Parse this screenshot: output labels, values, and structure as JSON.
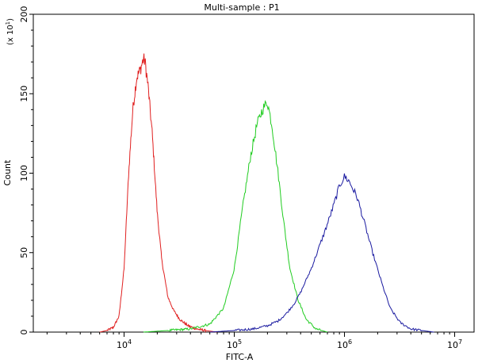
{
  "chart_data": {
    "type": "line",
    "title": "Multi-sample : P1",
    "xlabel": "FITC-A",
    "ylabel": "Count",
    "y_multiplier_label": "(x 10",
    "y_multiplier_exp": "1",
    "x_scale": "log",
    "xlim": [
      1500,
      15000000
    ],
    "ylim": [
      0,
      200
    ],
    "x_ticks": [
      {
        "value": 10000,
        "base": "10",
        "exp": "4"
      },
      {
        "value": 100000,
        "base": "10",
        "exp": "5"
      },
      {
        "value": 1000000,
        "base": "10",
        "exp": "6"
      },
      {
        "value": 10000000,
        "base": "10",
        "exp": "7"
      }
    ],
    "y_ticks": [
      {
        "value": 0,
        "label": "0"
      },
      {
        "value": 50,
        "label": "50"
      },
      {
        "value": 100,
        "label": "100"
      },
      {
        "value": 150,
        "label": "150"
      },
      {
        "value": 200,
        "label": "200"
      }
    ],
    "grid": false,
    "legend": "none",
    "series": [
      {
        "color": "#e02020",
        "x": [
          6000,
          7000,
          8000,
          9000,
          10000,
          11000,
          12000,
          13000,
          14000,
          15000,
          15500,
          16500,
          18000,
          20000,
          22000,
          25000,
          28000,
          32000,
          38000,
          45000,
          55000,
          70000
        ],
        "y": [
          0,
          1,
          3,
          10,
          40,
          100,
          140,
          160,
          165,
          172,
          170,
          155,
          125,
          75,
          45,
          22,
          14,
          8,
          4,
          2,
          1,
          0
        ]
      },
      {
        "color": "#20cc20",
        "x": [
          15000,
          25000,
          40000,
          60000,
          80000,
          100000,
          120000,
          140000,
          160000,
          180000,
          200000,
          220000,
          250000,
          280000,
          320000,
          380000,
          450000,
          550000,
          700000
        ],
        "y": [
          0,
          1,
          2,
          5,
          15,
          40,
          80,
          110,
          130,
          140,
          145,
          130,
          100,
          70,
          40,
          20,
          8,
          2,
          0
        ]
      },
      {
        "color": "#1a1aa0",
        "x": [
          60000,
          100000,
          150000,
          200000,
          250000,
          300000,
          350000,
          400000,
          500000,
          600000,
          700000,
          800000,
          900000,
          1000000,
          1100000,
          1300000,
          1500000,
          1800000,
          2200000,
          2600000,
          3200000,
          4000000,
          5000000,
          6500000
        ],
        "y": [
          0,
          1,
          2,
          4,
          7,
          12,
          18,
          25,
          40,
          55,
          68,
          80,
          92,
          98,
          95,
          85,
          70,
          50,
          30,
          15,
          6,
          2,
          1,
          0
        ]
      }
    ]
  }
}
